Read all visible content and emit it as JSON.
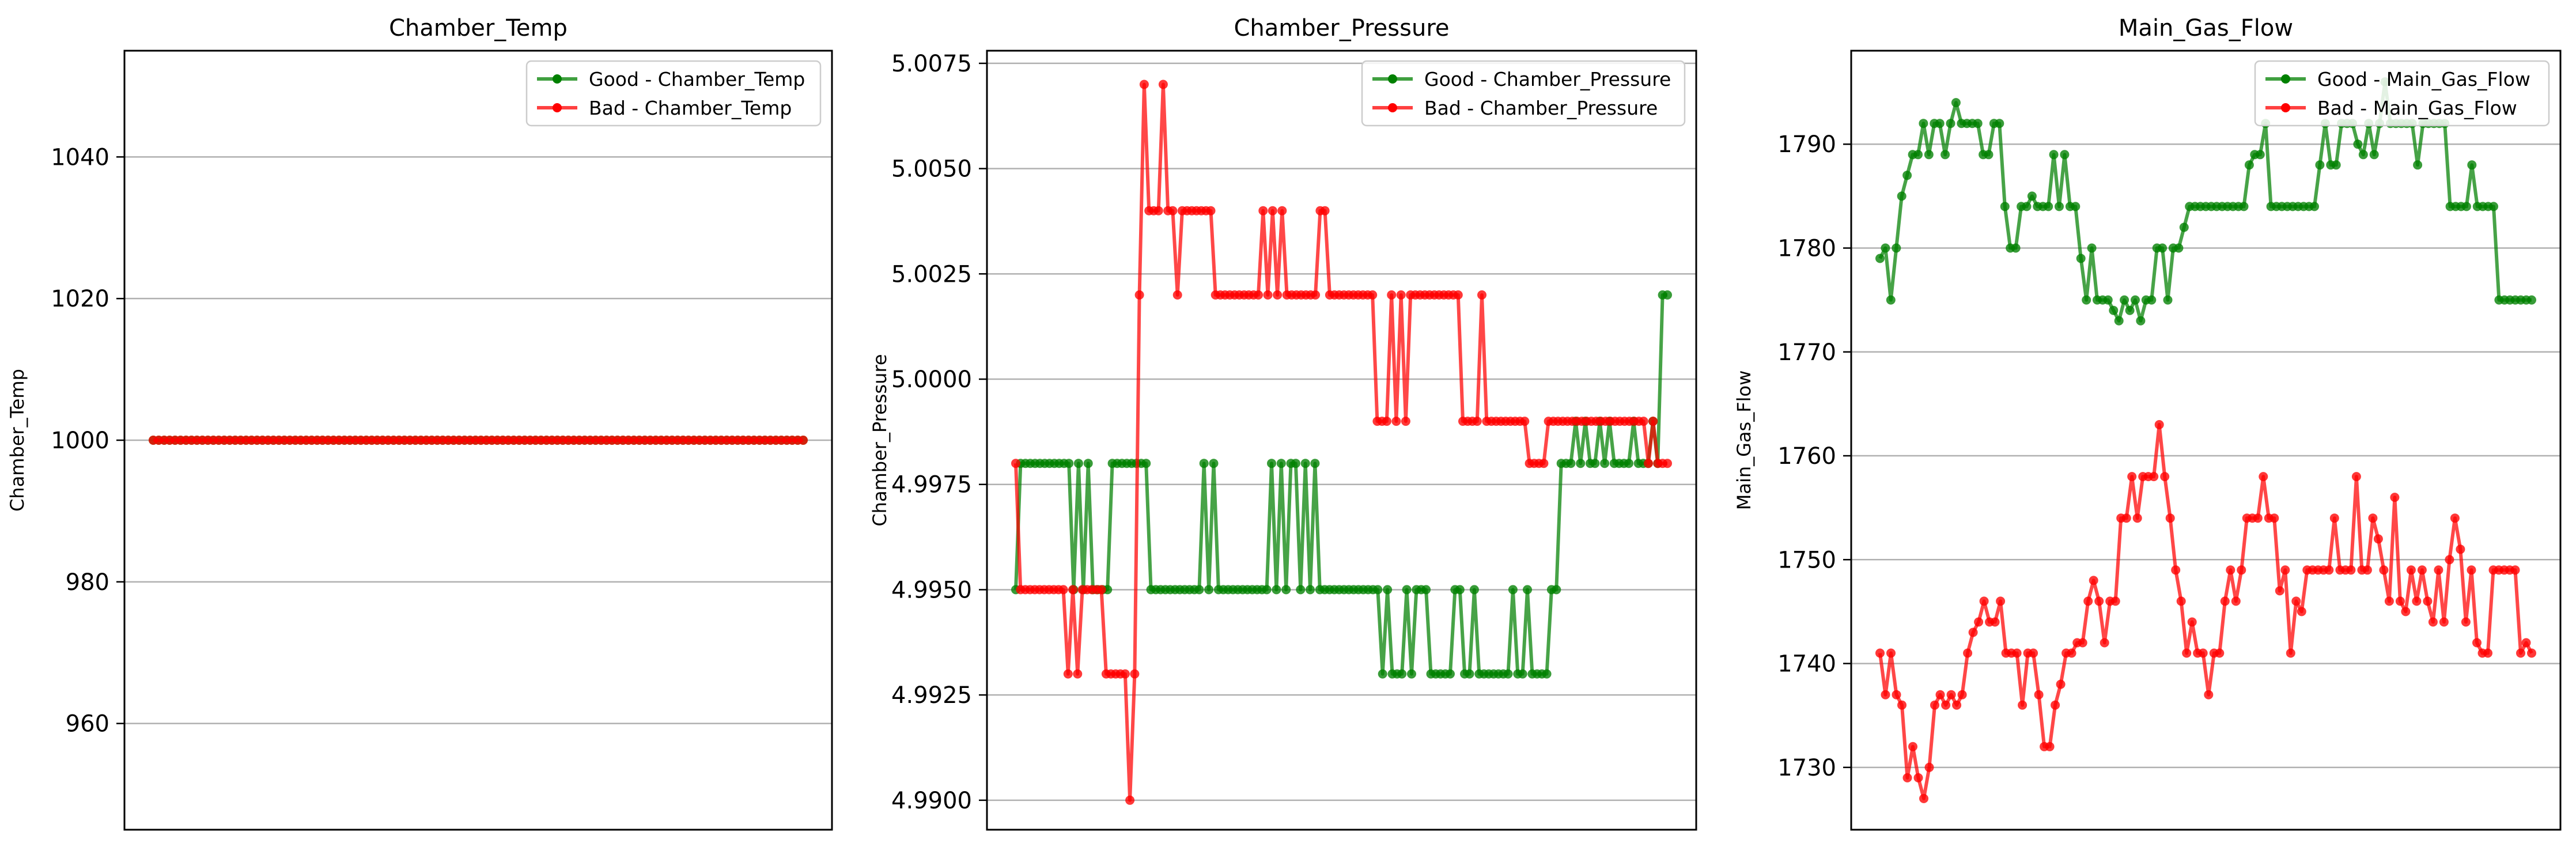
{
  "chart_data": [
    {
      "type": "line",
      "title": "Chamber_Temp",
      "xlabel": "",
      "ylabel": "Chamber_Temp",
      "ylim": [
        945,
        1055
      ],
      "yticks": [
        960,
        980,
        1000,
        1020,
        1040
      ],
      "ytick_labels": [
        "960",
        "980",
        "1000",
        "1020",
        "1040"
      ],
      "grid": "y",
      "legend": "top-right",
      "series": [
        {
          "name": "Good - Chamber_Temp",
          "color": "#008000",
          "values": [
            1000,
            1000,
            1000,
            1000,
            1000,
            1000,
            1000,
            1000,
            1000,
            1000,
            1000,
            1000,
            1000,
            1000,
            1000,
            1000,
            1000,
            1000,
            1000,
            1000,
            1000,
            1000,
            1000,
            1000,
            1000,
            1000,
            1000,
            1000,
            1000,
            1000,
            1000,
            1000,
            1000,
            1000,
            1000,
            1000,
            1000,
            1000,
            1000,
            1000,
            1000,
            1000,
            1000,
            1000,
            1000,
            1000,
            1000,
            1000,
            1000,
            1000,
            1000,
            1000,
            1000,
            1000,
            1000,
            1000,
            1000,
            1000,
            1000,
            1000,
            1000,
            1000,
            1000,
            1000,
            1000,
            1000,
            1000,
            1000,
            1000,
            1000,
            1000,
            1000,
            1000,
            1000,
            1000,
            1000,
            1000,
            1000,
            1000,
            1000,
            1000,
            1000,
            1000,
            1000,
            1000,
            1000,
            1000,
            1000,
            1000,
            1000,
            1000,
            1000,
            1000,
            1000,
            1000,
            1000,
            1000,
            1000,
            1000,
            1000,
            1000,
            1000,
            1000,
            1000,
            1000,
            1000,
            1000,
            1000,
            1000,
            1000,
            1000,
            1000,
            1000,
            1000,
            1000,
            1000,
            1000,
            1000,
            1000,
            1000
          ]
        },
        {
          "name": "Bad - Chamber_Temp",
          "color": "#ff0000",
          "values": [
            1000,
            1000,
            1000,
            1000,
            1000,
            1000,
            1000,
            1000,
            1000,
            1000,
            1000,
            1000,
            1000,
            1000,
            1000,
            1000,
            1000,
            1000,
            1000,
            1000,
            1000,
            1000,
            1000,
            1000,
            1000,
            1000,
            1000,
            1000,
            1000,
            1000,
            1000,
            1000,
            1000,
            1000,
            1000,
            1000,
            1000,
            1000,
            1000,
            1000,
            1000,
            1000,
            1000,
            1000,
            1000,
            1000,
            1000,
            1000,
            1000,
            1000,
            1000,
            1000,
            1000,
            1000,
            1000,
            1000,
            1000,
            1000,
            1000,
            1000,
            1000,
            1000,
            1000,
            1000,
            1000,
            1000,
            1000,
            1000,
            1000,
            1000,
            1000,
            1000,
            1000,
            1000,
            1000,
            1000,
            1000,
            1000,
            1000,
            1000,
            1000,
            1000,
            1000,
            1000,
            1000,
            1000,
            1000,
            1000,
            1000,
            1000,
            1000,
            1000,
            1000,
            1000,
            1000,
            1000,
            1000,
            1000,
            1000,
            1000,
            1000,
            1000,
            1000,
            1000,
            1000,
            1000,
            1000,
            1000,
            1000,
            1000,
            1000,
            1000,
            1000,
            1000,
            1000,
            1000,
            1000,
            1000,
            1000,
            1000
          ]
        }
      ]
    },
    {
      "type": "line",
      "title": "Chamber_Pressure",
      "xlabel": "",
      "ylabel": "Chamber_Pressure",
      "ylim": [
        4.9893,
        5.0078
      ],
      "yticks": [
        4.99,
        4.9925,
        4.995,
        4.9975,
        5.0,
        5.0025,
        5.005,
        5.0075
      ],
      "ytick_labels": [
        "4.9900",
        "4.9925",
        "4.9950",
        "4.9975",
        "5.0000",
        "5.0025",
        "5.0050",
        "5.0075"
      ],
      "grid": "y",
      "legend": "top-right",
      "series": [
        {
          "name": "Good - Chamber_Pressure",
          "color": "#008000",
          "values": [
            4.995,
            4.998,
            4.998,
            4.998,
            4.998,
            4.998,
            4.998,
            4.998,
            4.998,
            4.998,
            4.998,
            4.998,
            4.995,
            4.998,
            4.995,
            4.998,
            4.995,
            4.995,
            4.995,
            4.995,
            4.998,
            4.998,
            4.998,
            4.998,
            4.998,
            4.998,
            4.998,
            4.998,
            4.995,
            4.995,
            4.995,
            4.995,
            4.995,
            4.995,
            4.995,
            4.995,
            4.995,
            4.995,
            4.995,
            4.998,
            4.995,
            4.998,
            4.995,
            4.995,
            4.995,
            4.995,
            4.995,
            4.995,
            4.995,
            4.995,
            4.995,
            4.995,
            4.995,
            4.998,
            4.995,
            4.998,
            4.995,
            4.998,
            4.998,
            4.995,
            4.998,
            4.995,
            4.998,
            4.995,
            4.995,
            4.995,
            4.995,
            4.995,
            4.995,
            4.995,
            4.995,
            4.995,
            4.995,
            4.995,
            4.995,
            4.995,
            4.993,
            4.995,
            4.993,
            4.993,
            4.993,
            4.995,
            4.993,
            4.995,
            4.995,
            4.995,
            4.993,
            4.993,
            4.993,
            4.993,
            4.993,
            4.995,
            4.995,
            4.993,
            4.993,
            4.995,
            4.993,
            4.993,
            4.993,
            4.993,
            4.993,
            4.993,
            4.993,
            4.995,
            4.993,
            4.993,
            4.995,
            4.993,
            4.993,
            4.993,
            4.993,
            4.995,
            4.995,
            4.998,
            4.998,
            4.998,
            4.999,
            4.998,
            4.999,
            4.998,
            4.998,
            4.999,
            4.998,
            4.999,
            4.998,
            4.998,
            4.998,
            4.998,
            4.999,
            4.998,
            4.998,
            4.998,
            4.999,
            4.998,
            5.002,
            5.002
          ]
        },
        {
          "name": "Bad - Chamber_Pressure",
          "color": "#ff0000",
          "values": [
            4.998,
            4.995,
            4.995,
            4.995,
            4.995,
            4.995,
            4.995,
            4.995,
            4.995,
            4.995,
            4.995,
            4.993,
            4.995,
            4.993,
            4.995,
            4.995,
            4.995,
            4.995,
            4.995,
            4.993,
            4.993,
            4.993,
            4.993,
            4.993,
            4.99,
            4.993,
            5.002,
            5.007,
            5.004,
            5.004,
            5.004,
            5.007,
            5.004,
            5.004,
            5.002,
            5.004,
            5.004,
            5.004,
            5.004,
            5.004,
            5.004,
            5.004,
            5.002,
            5.002,
            5.002,
            5.002,
            5.002,
            5.002,
            5.002,
            5.002,
            5.002,
            5.002,
            5.004,
            5.002,
            5.004,
            5.002,
            5.004,
            5.002,
            5.002,
            5.002,
            5.002,
            5.002,
            5.002,
            5.002,
            5.004,
            5.004,
            5.002,
            5.002,
            5.002,
            5.002,
            5.002,
            5.002,
            5.002,
            5.002,
            5.002,
            5.002,
            4.999,
            4.999,
            4.999,
            5.002,
            4.999,
            5.002,
            4.999,
            5.002,
            5.002,
            5.002,
            5.002,
            5.002,
            5.002,
            5.002,
            5.002,
            5.002,
            5.002,
            5.002,
            4.999,
            4.999,
            4.999,
            4.999,
            5.002,
            4.999,
            4.999,
            4.999,
            4.999,
            4.999,
            4.999,
            4.999,
            4.999,
            4.999,
            4.998,
            4.998,
            4.998,
            4.998,
            4.999,
            4.999,
            4.999,
            4.999,
            4.999,
            4.999,
            4.999,
            4.999,
            4.999,
            4.999,
            4.999,
            4.999,
            4.999,
            4.999,
            4.999,
            4.999,
            4.999,
            4.999,
            4.999,
            4.999,
            4.999,
            4.998,
            4.999,
            4.998,
            4.998,
            4.998
          ]
        }
      ]
    },
    {
      "type": "line",
      "title": "Main_Gas_Flow",
      "xlabel": "",
      "ylabel": "Main_Gas_Flow",
      "ylim": [
        1724,
        1799
      ],
      "yticks": [
        1730,
        1740,
        1750,
        1760,
        1770,
        1780,
        1790
      ],
      "ytick_labels": [
        "1730",
        "1740",
        "1750",
        "1760",
        "1770",
        "1780",
        "1790"
      ],
      "grid": "y",
      "legend": "top-right",
      "series": [
        {
          "name": "Good - Main_Gas_Flow",
          "color": "#008000",
          "values": [
            1779,
            1780,
            1775,
            1780,
            1785,
            1787,
            1789,
            1789,
            1792,
            1789,
            1792,
            1792,
            1789,
            1792,
            1794,
            1792,
            1792,
            1792,
            1792,
            1789,
            1789,
            1792,
            1792,
            1784,
            1780,
            1780,
            1784,
            1784,
            1785,
            1784,
            1784,
            1784,
            1789,
            1784,
            1789,
            1784,
            1784,
            1779,
            1775,
            1780,
            1775,
            1775,
            1775,
            1774,
            1773,
            1775,
            1774,
            1775,
            1773,
            1775,
            1775,
            1780,
            1780,
            1775,
            1780,
            1780,
            1782,
            1784,
            1784,
            1784,
            1784,
            1784,
            1784,
            1784,
            1784,
            1784,
            1784,
            1784,
            1788,
            1789,
            1789,
            1792,
            1784,
            1784,
            1784,
            1784,
            1784,
            1784,
            1784,
            1784,
            1784,
            1788,
            1792,
            1788,
            1788,
            1792,
            1792,
            1792,
            1790,
            1789,
            1792,
            1789,
            1792,
            1796,
            1792,
            1792,
            1792,
            1792,
            1792,
            1788,
            1792,
            1792,
            1792,
            1792,
            1792,
            1784,
            1784,
            1784,
            1784,
            1788,
            1784,
            1784,
            1784,
            1784,
            1775,
            1775,
            1775,
            1775,
            1775,
            1775,
            1775
          ]
        },
        {
          "name": "Bad - Main_Gas_Flow",
          "color": "#ff0000",
          "values": [
            1741,
            1737,
            1741,
            1737,
            1736,
            1729,
            1732,
            1729,
            1727,
            1730,
            1736,
            1737,
            1736,
            1737,
            1736,
            1737,
            1741,
            1743,
            1744,
            1746,
            1744,
            1744,
            1746,
            1741,
            1741,
            1741,
            1736,
            1741,
            1741,
            1737,
            1732,
            1732,
            1736,
            1738,
            1741,
            1741,
            1742,
            1742,
            1746,
            1748,
            1746,
            1742,
            1746,
            1746,
            1754,
            1754,
            1758,
            1754,
            1758,
            1758,
            1758,
            1763,
            1758,
            1754,
            1749,
            1746,
            1741,
            1744,
            1741,
            1741,
            1737,
            1741,
            1741,
            1746,
            1749,
            1746,
            1749,
            1754,
            1754,
            1754,
            1758,
            1754,
            1754,
            1747,
            1749,
            1741,
            1746,
            1745,
            1749,
            1749,
            1749,
            1749,
            1749,
            1754,
            1749,
            1749,
            1749,
            1758,
            1749,
            1749,
            1754,
            1752,
            1749,
            1746,
            1756,
            1746,
            1745,
            1749,
            1746,
            1749,
            1746,
            1744,
            1749,
            1744,
            1750,
            1754,
            1751,
            1744,
            1749,
            1742,
            1741,
            1741,
            1749,
            1749,
            1749,
            1749,
            1749,
            1741,
            1742,
            1741
          ]
        }
      ]
    }
  ]
}
